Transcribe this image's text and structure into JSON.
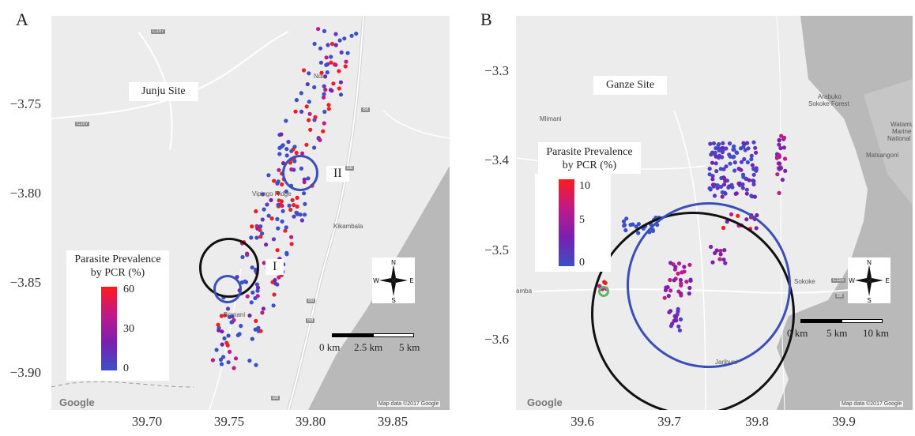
{
  "panelA": {
    "letter": "A",
    "site": "Junju Site",
    "yticks": [
      "−3.75",
      "−3.80",
      "−3.85",
      "−3.90"
    ],
    "xticks": [
      "39.70",
      "39.75",
      "39.80",
      "39.85"
    ],
    "legend": {
      "title1": "Parasite Prevalence",
      "title2": "by PCR (%)",
      "levels": [
        "60",
        "30",
        "0"
      ]
    },
    "circle_labels": [
      "II",
      "I"
    ],
    "scale": [
      "0 km",
      "2.5 km",
      "5 km"
    ],
    "places": [
      "Kikambala",
      "Vipingo Ridge",
      "Ndiri",
      "Bomani"
    ],
    "roads": [
      "C107",
      "C107",
      "B8",
      "B8",
      "B8",
      "B8",
      "B8"
    ],
    "google": "Google",
    "attribution": "Map data ©2017 Google"
  },
  "panelB": {
    "letter": "B",
    "site": "Ganze Site",
    "yticks": [
      "−3.3",
      "−3.4",
      "−3.5",
      "−3.6"
    ],
    "xticks": [
      "39.6",
      "39.7",
      "39.8",
      "39.9"
    ],
    "legend": {
      "title1": "Parasite Prevalence",
      "title2": "by PCR (%)",
      "levels": [
        "10",
        "5",
        "0"
      ]
    },
    "scale": [
      "0 km",
      "5 km",
      "10 km"
    ],
    "places": [
      "Mlimani",
      "Arabuko",
      "Sokoke Forest",
      "Matsangoni",
      "Watamu",
      "Marine",
      "National",
      "Sokoke",
      "Jaribuni",
      "amba"
    ],
    "roads": [
      "C115",
      "B8"
    ],
    "google": "Google",
    "attribution": "Map data ©2017 Google"
  },
  "compass": {
    "n": "N",
    "s": "S",
    "e": "E",
    "w": "W"
  },
  "colors": {
    "low": "#3a50c8",
    "mid": "#c0198a",
    "high": "#ff1a1a",
    "ring_dark": "#111111",
    "ring_blue": "#3b4fb8",
    "ring_green": "#5cb85c",
    "sea": "#b8b8b8"
  }
}
